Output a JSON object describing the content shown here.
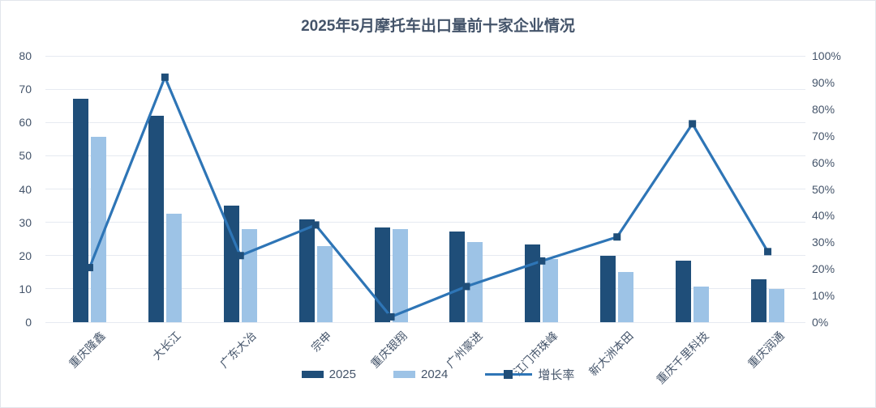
{
  "title": "2025年5月摩托车出口量前十家企业情况",
  "colors": {
    "bar_2025": "#1f4e79",
    "bar_2024": "#9dc3e6",
    "line": "#2e75b6",
    "line_marker": "#1f4e79",
    "title_text": "#44546a",
    "axis_text": "#44546a",
    "gridline": "#e6eaf1"
  },
  "legend": {
    "items": [
      {
        "label": "2025",
        "swatch": "bar-dark"
      },
      {
        "label": "2024",
        "swatch": "bar-light"
      },
      {
        "label": "增长率",
        "swatch": "line-marker"
      }
    ]
  },
  "chart_data": {
    "type": "bar",
    "subtype": "grouped bars with overlay line on secondary percent axis",
    "title": "2025年5月摩托车出口量前十家企业情况",
    "categories": [
      "重庆隆鑫",
      "大长江",
      "广东大冶",
      "宗申",
      "重庆银翔",
      "广州豪进",
      "江门市珠峰",
      "新大洲本田",
      "重庆千里科技",
      "重庆润通"
    ],
    "series": [
      {
        "name": "2025",
        "type": "bar",
        "axis": "left",
        "values": [
          67,
          62,
          35,
          31,
          28.5,
          27.3,
          23.3,
          20,
          18.5,
          12.8
        ]
      },
      {
        "name": "2024",
        "type": "bar",
        "axis": "left",
        "values": [
          55.7,
          32.5,
          28,
          22.8,
          28,
          24,
          19,
          15.2,
          10.7,
          10
        ]
      },
      {
        "name": "增长率",
        "type": "line",
        "axis": "right",
        "unit": "%",
        "values": [
          20.5,
          92,
          25,
          36.5,
          2,
          13.4,
          23,
          32,
          74.5,
          26.5
        ]
      }
    ],
    "left_axis": {
      "min": 0,
      "max": 80,
      "step": 10,
      "ticks": [
        "0",
        "10",
        "20",
        "30",
        "40",
        "50",
        "60",
        "70",
        "80"
      ]
    },
    "right_axis": {
      "min": 0,
      "max": 100,
      "step": 10,
      "ticks": [
        "0%",
        "10%",
        "20%",
        "30%",
        "40%",
        "50%",
        "60%",
        "70%",
        "80%",
        "90%",
        "100%"
      ]
    },
    "grid": "horizontal",
    "legend_position": "bottom"
  }
}
